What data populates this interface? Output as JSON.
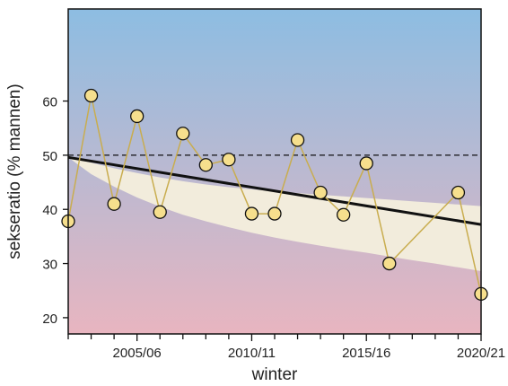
{
  "chart_data": {
    "type": "line",
    "xlabel": "winter",
    "ylabel": "sekseratio (% mannen)",
    "x_tick_labels": [
      "2005/06",
      "2010/11",
      "2015/16",
      "2020/21"
    ],
    "x_tick_label_winter_index": [
      3,
      8,
      13,
      18
    ],
    "ylim": [
      17,
      77
    ],
    "y_ticks": [
      20,
      30,
      40,
      50,
      60
    ],
    "x": [
      "2002/03",
      "2003/04",
      "2004/05",
      "2005/06",
      "2006/07",
      "2007/08",
      "2008/09",
      "2009/10",
      "2010/11",
      "2011/12",
      "2012/13",
      "2013/14",
      "2014/15",
      "2015/16",
      "2016/17",
      "2017/18",
      "2018/19",
      "2019/20",
      "2020/21"
    ],
    "series": [
      {
        "values": [
          37.8,
          61.0,
          41.0,
          57.2,
          39.5,
          54.0,
          48.2,
          49.2,
          39.2,
          39.2,
          52.8,
          43.1,
          39.0,
          48.5,
          30.0,
          null,
          null,
          43.1,
          24.4
        ],
        "color": "#c9ad4f",
        "marker_fill": "#f6df8d"
      }
    ],
    "trend": {
      "start": 49.6,
      "end": 37.2,
      "color": "#111111"
    },
    "confidence_band": {
      "upper": [
        49.6,
        48.6,
        47.6,
        46.7,
        45.9,
        45.2,
        44.6,
        44.1,
        43.7,
        43.3,
        43.0,
        42.7,
        42.4,
        42.1,
        41.8,
        41.5,
        41.2,
        40.9,
        40.6
      ],
      "lower": [
        49.6,
        46.5,
        44.2,
        42.2,
        40.5,
        39.0,
        37.8,
        36.7,
        35.7,
        34.8,
        34.0,
        33.3,
        32.6,
        32.0,
        31.3,
        30.6,
        30.0,
        29.3,
        28.6
      ],
      "color": "#f2ecdc"
    },
    "reference_line": {
      "y": 50,
      "style": "dashed",
      "color": "#111111"
    },
    "background_gradient": [
      "#8dbde2",
      "#e8b5c0"
    ],
    "grid": false,
    "legend": "none"
  }
}
